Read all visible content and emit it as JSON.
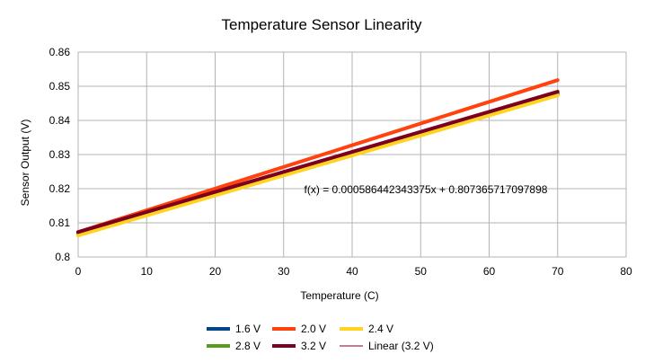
{
  "chart_data": {
    "type": "line",
    "title": "Temperature Sensor Linearity",
    "xlabel": "Temperature (C)",
    "ylabel": "Sensor Output (V)",
    "xlim": [
      0,
      80
    ],
    "ylim": [
      0.8,
      0.86
    ],
    "xticks": [
      "0",
      "10",
      "20",
      "30",
      "40",
      "50",
      "60",
      "70",
      "80"
    ],
    "yticks": [
      "0.8",
      "0.81",
      "0.82",
      "0.83",
      "0.84",
      "0.85",
      "0.86"
    ],
    "grid": true,
    "legend_position": "bottom",
    "annotation": "f(x) = 0.000586442343375x + 0.807365717097898",
    "series": [
      {
        "name": "1.6 V",
        "color": "#004586",
        "x": [
          0,
          70
        ],
        "y": [
          0.8069,
          0.8478
        ]
      },
      {
        "name": "2.0 V",
        "color": "#ff420e",
        "x": [
          0,
          70
        ],
        "y": [
          0.8073,
          0.8518
        ]
      },
      {
        "name": "2.4 V",
        "color": "#ffd320",
        "x": [
          0,
          70
        ],
        "y": [
          0.8063,
          0.8473
        ]
      },
      {
        "name": "2.8 V",
        "color": "#579d1c",
        "x": [
          0,
          70
        ],
        "y": [
          0.807,
          0.848
        ]
      },
      {
        "name": "3.2 V",
        "color": "#7e0021",
        "x": [
          0,
          70
        ],
        "y": [
          0.8073,
          0.8484
        ]
      },
      {
        "name": "Linear (3.2 V)",
        "color": "#7e0021",
        "trendline": true,
        "x": [
          0,
          70
        ],
        "y": [
          0.807365717097898,
          0.848416681134
        ]
      }
    ]
  }
}
